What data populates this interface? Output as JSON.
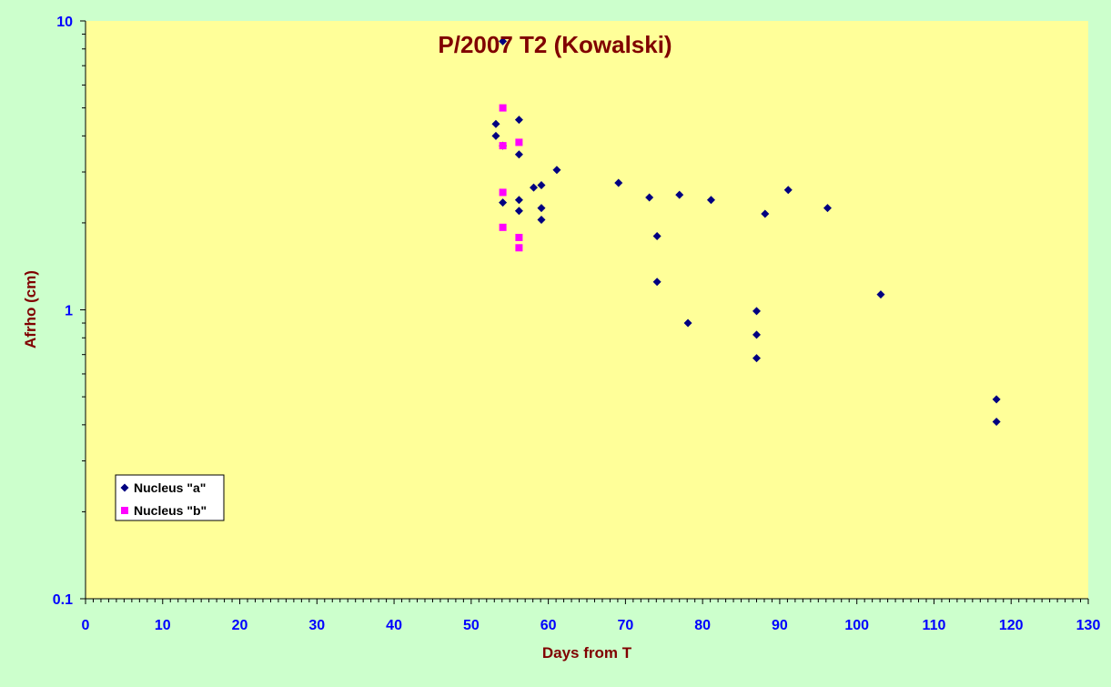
{
  "chart_data": {
    "type": "scatter",
    "title": "P/2007 T2 (Kowalski)",
    "xlabel": "Days from T",
    "ylabel": "Afrho (cm)",
    "xlim": [
      0,
      130
    ],
    "ylim": [
      0.1,
      10
    ],
    "y_scale": "log",
    "x_ticks": [
      "0",
      "10",
      "20",
      "30",
      "40",
      "50",
      "60",
      "70",
      "80",
      "90",
      "100",
      "110",
      "120",
      "130"
    ],
    "y_ticks": [
      "0.1",
      "1",
      "10"
    ],
    "grid": false,
    "legend_position": "lower-left",
    "colors": {
      "plot_background": "#ffff99",
      "page_background": "#ccffcc",
      "title_color": "#800000",
      "tick_color": "#0000ff"
    },
    "series": [
      {
        "name": "Nucleus \"a\"",
        "marker": "diamond",
        "color": "#000080",
        "points": [
          [
            53.2,
            4.4
          ],
          [
            53.2,
            4.0
          ],
          [
            54.1,
            8.5
          ],
          [
            54.1,
            3.7
          ],
          [
            54.1,
            2.35
          ],
          [
            56.2,
            4.55
          ],
          [
            56.2,
            3.45
          ],
          [
            56.2,
            2.4
          ],
          [
            56.2,
            2.2
          ],
          [
            58.1,
            2.65
          ],
          [
            59.1,
            2.7
          ],
          [
            59.1,
            2.25
          ],
          [
            59.1,
            2.05
          ],
          [
            61.1,
            3.05
          ],
          [
            69.1,
            2.75
          ],
          [
            73.1,
            2.45
          ],
          [
            74.1,
            1.8
          ],
          [
            74.1,
            1.25
          ],
          [
            77.0,
            2.5
          ],
          [
            78.1,
            0.9
          ],
          [
            81.1,
            2.4
          ],
          [
            87.0,
            0.99
          ],
          [
            87.0,
            0.82
          ],
          [
            87.0,
            0.68
          ],
          [
            88.1,
            2.15
          ],
          [
            91.1,
            2.6
          ],
          [
            96.2,
            2.25
          ],
          [
            103.1,
            1.13
          ],
          [
            118.1,
            0.49
          ],
          [
            118.1,
            0.41
          ]
        ]
      },
      {
        "name": "Nucleus \"b\"",
        "marker": "square",
        "color": "#ff00ff",
        "points": [
          [
            54.1,
            5.0
          ],
          [
            54.1,
            3.7
          ],
          [
            54.1,
            2.55
          ],
          [
            54.1,
            1.93
          ],
          [
            56.2,
            3.8
          ],
          [
            56.2,
            1.78
          ],
          [
            56.2,
            1.64
          ]
        ]
      }
    ]
  }
}
